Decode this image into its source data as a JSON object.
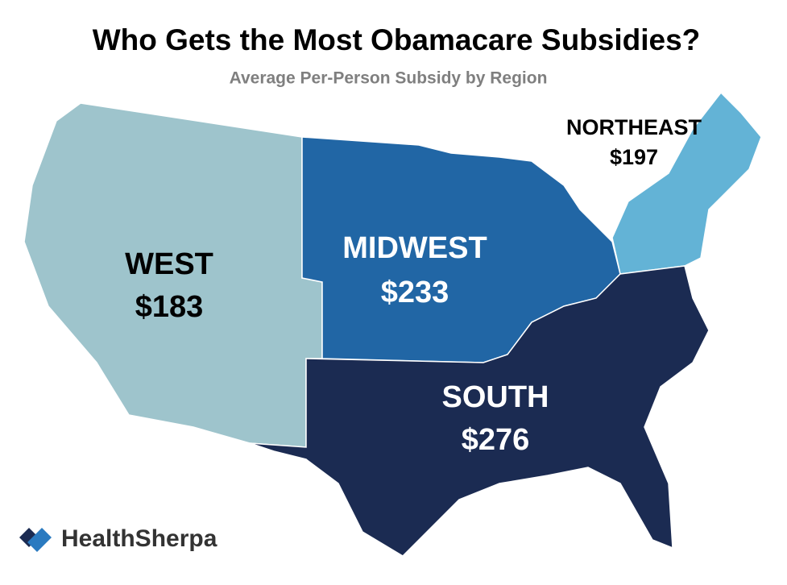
{
  "header": {
    "title": "Who Gets the Most Obamacare Subsidies?",
    "subtitle": "Average Per-Person Subsidy by Region"
  },
  "regions": [
    {
      "name": "WEST",
      "value": "$183",
      "color": "#9ec4cc"
    },
    {
      "name": "MIDWEST",
      "value": "$233",
      "color": "#2166a5"
    },
    {
      "name": "NORTHEAST",
      "value": "$197",
      "color": "#63b3d6"
    },
    {
      "name": "SOUTH",
      "value": "$276",
      "color": "#1b2b52"
    }
  ],
  "logo": {
    "text": "HealthSherpa"
  }
}
